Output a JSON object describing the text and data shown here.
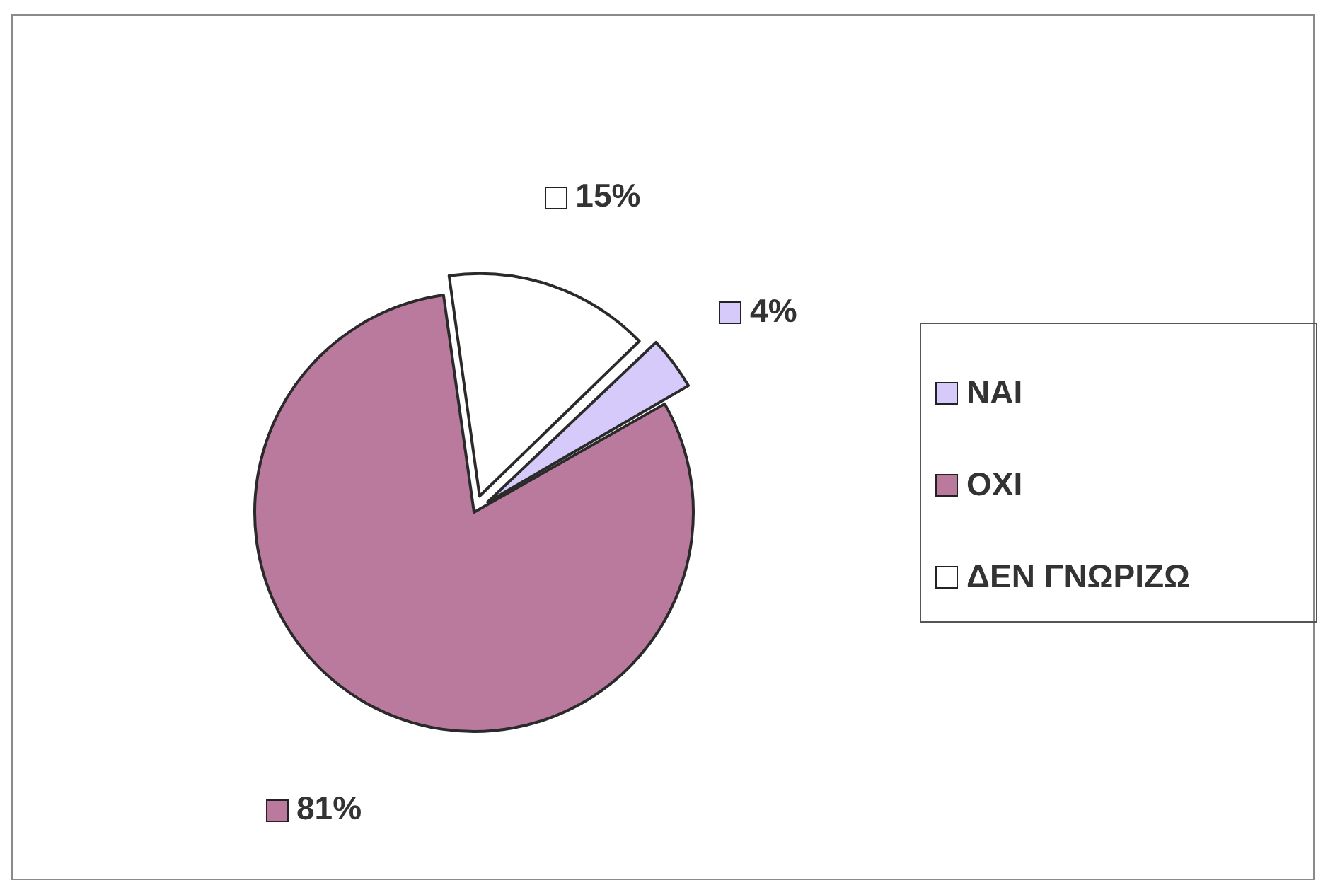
{
  "chart_data": {
    "type": "pie",
    "categories": [
      "ΝΑΙ",
      "ΟΧΙ",
      "ΔΕΝ ΓΝΩΡΙΖΩ"
    ],
    "values": [
      4,
      81,
      15
    ],
    "colors": [
      "#d6cafa",
      "#b97a9e",
      "#ffffff"
    ],
    "value_labels": [
      "4%",
      "81%",
      "15%"
    ],
    "legend": "right"
  }
}
